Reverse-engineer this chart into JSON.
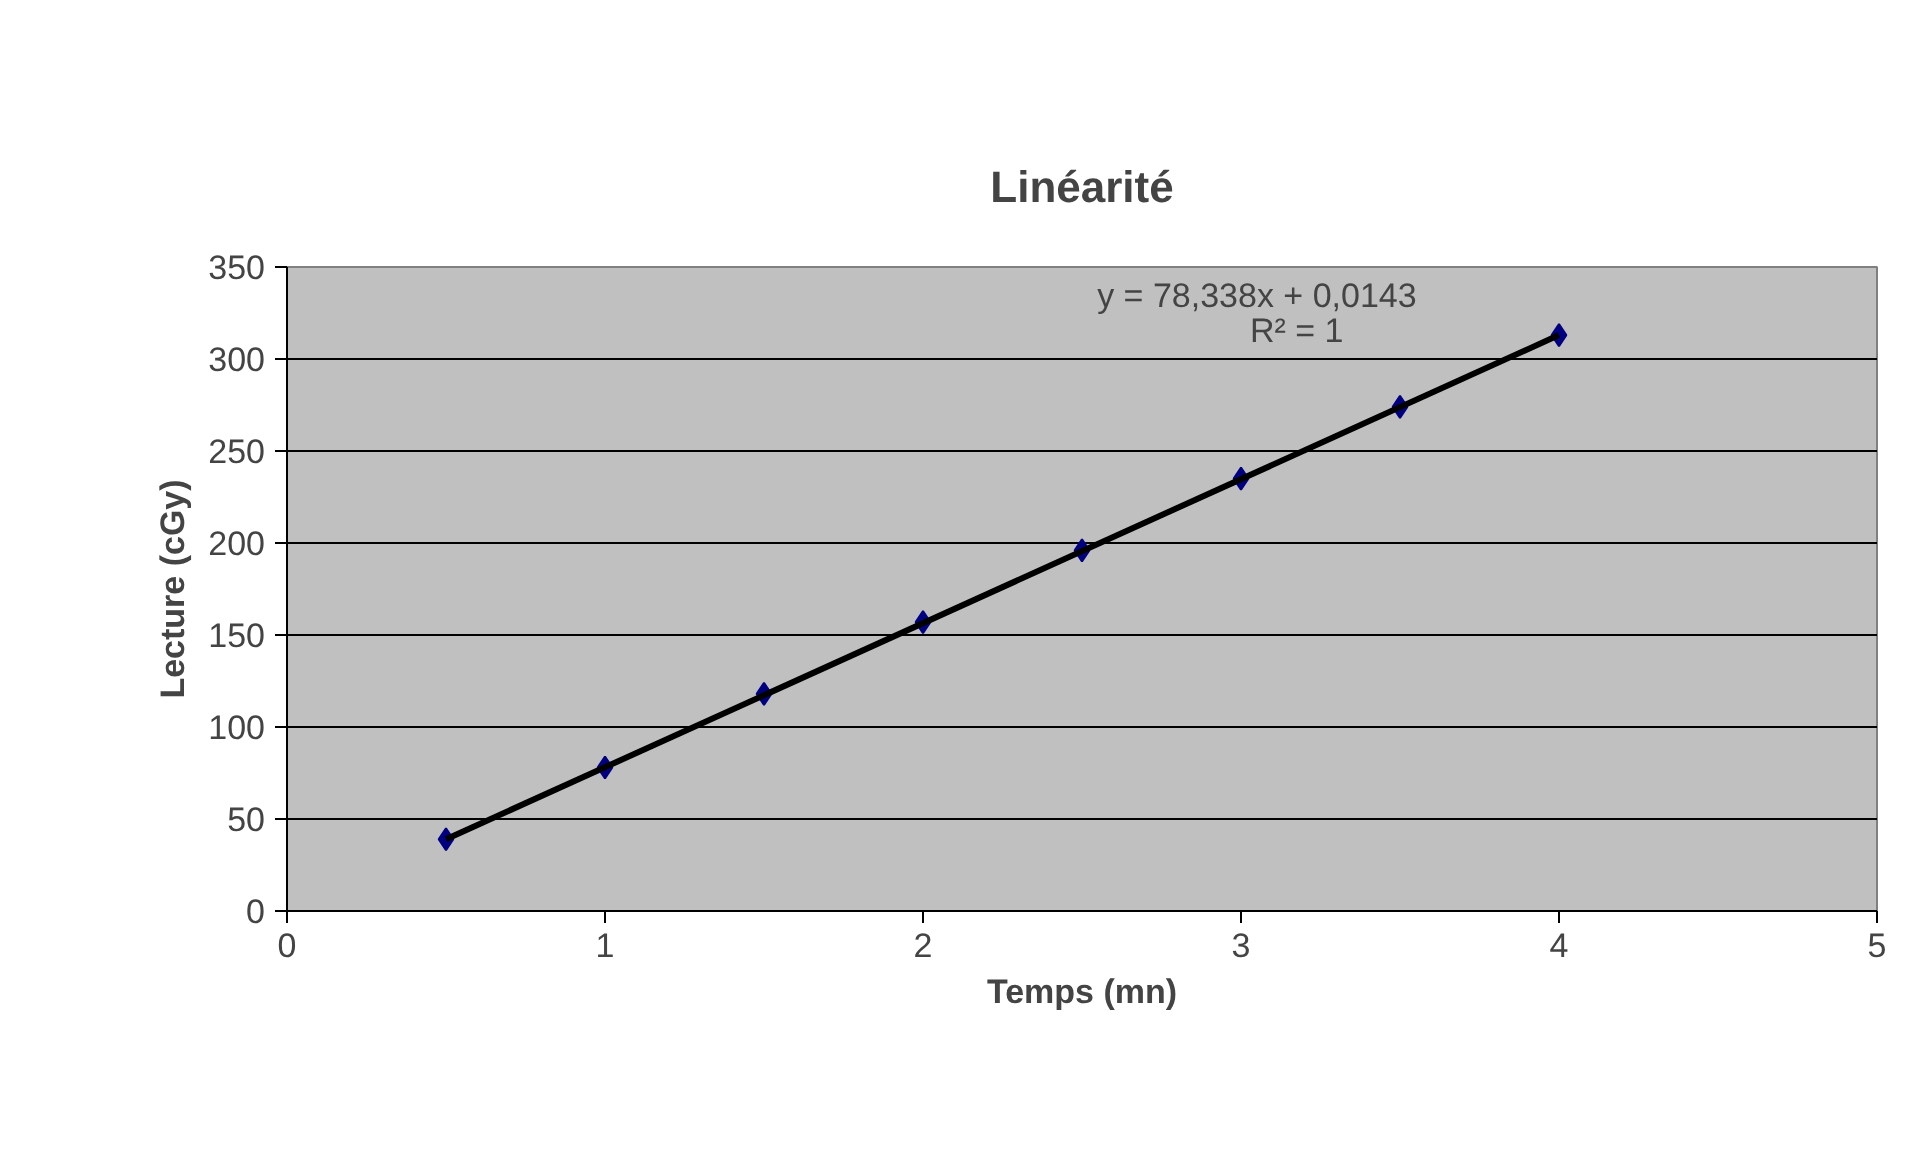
{
  "chart_data": {
    "type": "scatter",
    "title": "Linéarité",
    "xlabel": "Temps (mn)",
    "ylabel": "Lecture (cGy)",
    "xlim": [
      0,
      5
    ],
    "xticks": [
      0,
      1,
      2,
      3,
      4,
      5
    ],
    "ylim": [
      0,
      350
    ],
    "yticks": [
      0,
      50,
      100,
      150,
      200,
      250,
      300,
      350
    ],
    "grid": "y",
    "marker": "diamond",
    "series": [
      {
        "color": "#000080",
        "x": [
          0.5,
          1,
          1.5,
          2,
          2.5,
          3,
          3.5,
          4
        ],
        "values": [
          39,
          78,
          118,
          157,
          196,
          235,
          274,
          313
        ]
      },
      {
        "type": "line",
        "color": "#000000",
        "marker": "none",
        "x": [
          0.5,
          4
        ],
        "values": [
          39,
          313
        ]
      }
    ],
    "annotations": [
      "y = 78,338x + 0,0143",
      "R² = 1"
    ]
  }
}
